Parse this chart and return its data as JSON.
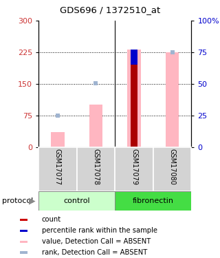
{
  "title": "GDS696 / 1372510_at",
  "samples": [
    "GSM17077",
    "GSM17078",
    "GSM17079",
    "GSM17080"
  ],
  "groups": [
    "control",
    "control",
    "fibronectin",
    "fibronectin"
  ],
  "bar_colors_absent_value": "#FFB6C1",
  "bar_colors_absent_rank": "#A0B4D0",
  "bar_colors_count": "#AA0000",
  "bar_colors_percentile": "#0000CC",
  "values_absent": [
    35,
    100,
    232,
    225
  ],
  "rank_absent_left": [
    75,
    152,
    null,
    225
  ],
  "count_values": [
    null,
    null,
    232,
    null
  ],
  "percentile_values": [
    null,
    null,
    195,
    null
  ],
  "ylim_left": [
    0,
    300
  ],
  "ylim_right": [
    0,
    100
  ],
  "yticks_left": [
    0,
    75,
    150,
    225,
    300
  ],
  "yticks_right": [
    0,
    25,
    50,
    75,
    100
  ],
  "ylabel_left_color": "#CC3333",
  "ylabel_right_color": "#0000CC",
  "bg_color": "#FFFFFF",
  "control_color": "#CCFFCC",
  "fibronectin_color": "#44DD44",
  "legend_items": [
    {
      "color": "#CC0000",
      "label": "count"
    },
    {
      "color": "#0000CC",
      "label": "percentile rank within the sample"
    },
    {
      "color": "#FFB6C1",
      "label": "value, Detection Call = ABSENT"
    },
    {
      "color": "#A0B4D0",
      "label": "rank, Detection Call = ABSENT"
    }
  ],
  "bar_width": 0.35,
  "narrow_bar_width": 0.18
}
